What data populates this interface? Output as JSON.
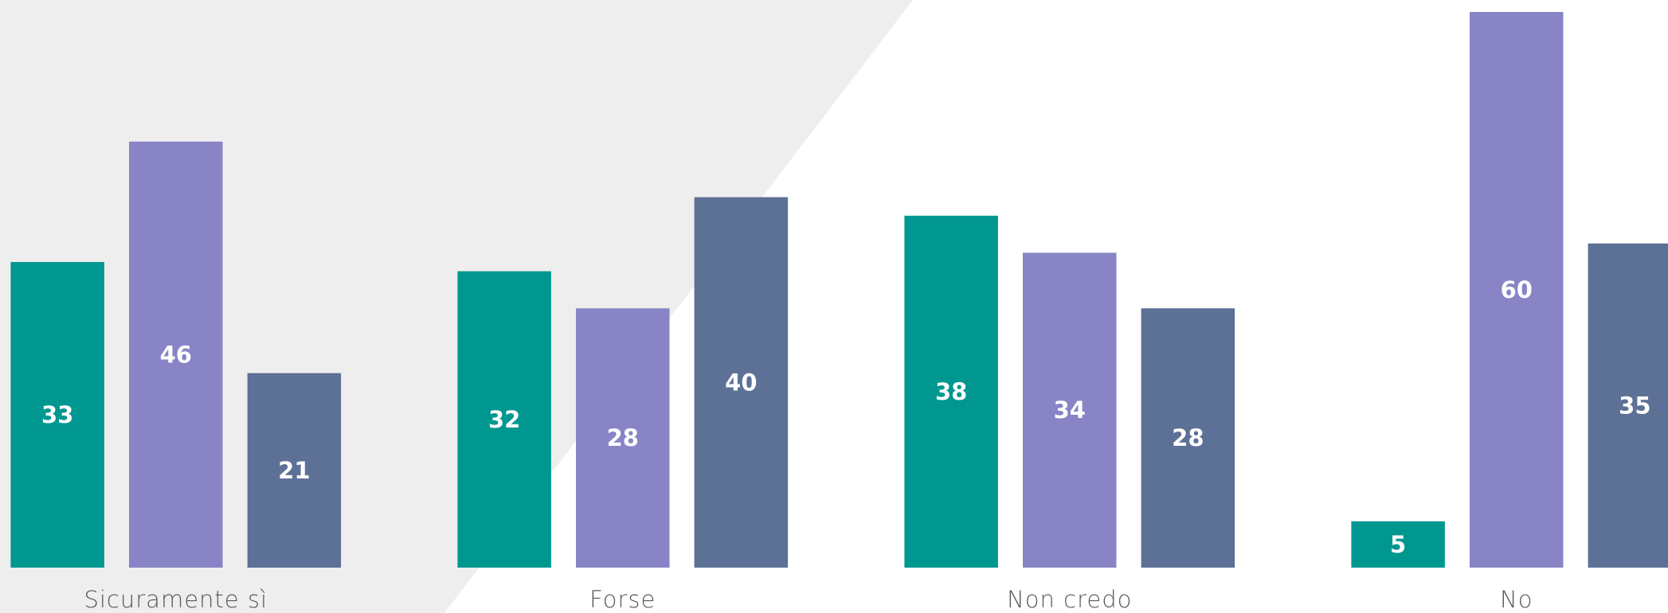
{
  "chart_data": {
    "type": "bar",
    "categories": [
      "Sicuramente sì",
      "Forse",
      "Non credo",
      "No"
    ],
    "series": [
      {
        "color": "#009790",
        "values": [
          33,
          32,
          38,
          5
        ]
      },
      {
        "color": "#8884c6",
        "values": [
          46,
          28,
          34,
          60
        ]
      },
      {
        "color": "#5d7096",
        "values": [
          21,
          40,
          28,
          35
        ]
      }
    ],
    "ylim": [
      0,
      60
    ]
  }
}
